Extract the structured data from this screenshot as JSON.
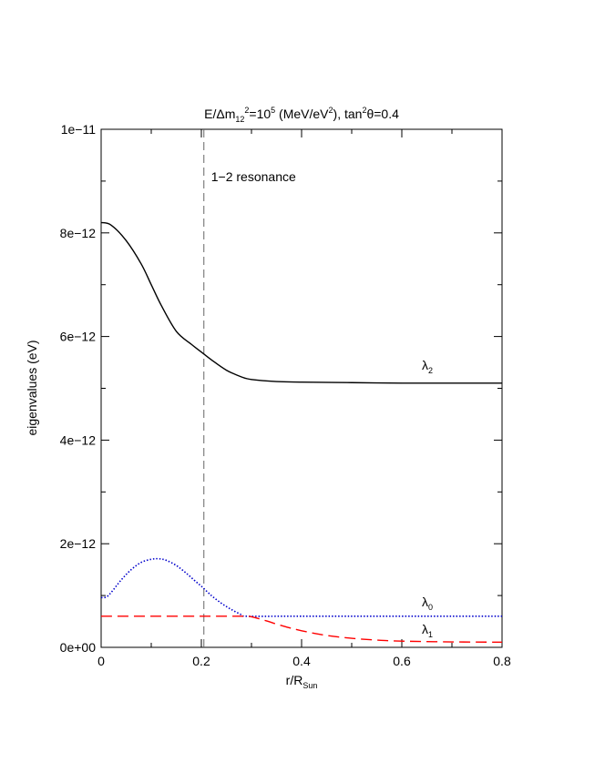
{
  "chart_data": {
    "type": "line",
    "title_parts": {
      "a": "E/Δm",
      "sub": "12",
      "sup1": "2",
      "b": "=10",
      "sup2": "5",
      "c": " (MeV/eV",
      "sup3": "2",
      "d": "), tan",
      "sup4": "2",
      "e": "θ=0.4"
    },
    "xlabel_parts": {
      "main": "r/R",
      "sub": "Sun"
    },
    "ylabel": "eigenvalues (eV)",
    "xlim": [
      0,
      0.8
    ],
    "ylim": [
      0,
      1e-11
    ],
    "x_ticks": [
      0,
      0.2,
      0.4,
      0.6,
      0.8
    ],
    "x_tick_labels": [
      "0",
      "0.2",
      "0.4",
      "0.6",
      "0.8"
    ],
    "y_ticks": [
      0,
      2e-12,
      4e-12,
      6e-12,
      8e-12,
      1e-11
    ],
    "y_tick_labels": [
      "0e+00",
      "2e−12",
      "4e−12",
      "6e−12",
      "8e−12",
      "1e−11"
    ],
    "grid": false,
    "series": [
      {
        "name": "λ2",
        "label": {
          "main": "λ",
          "sub": "2"
        },
        "color": "#000000",
        "style": "solid",
        "x": [
          0,
          0.02,
          0.05,
          0.08,
          0.1,
          0.12,
          0.15,
          0.18,
          0.2,
          0.22,
          0.25,
          0.28,
          0.3,
          0.35,
          0.4,
          0.5,
          0.6,
          0.7,
          0.8
        ],
        "y": [
          8.2e-12,
          8.15e-12,
          7.85e-12,
          7.4e-12,
          7e-12,
          6.6e-12,
          6.1e-12,
          5.85e-12,
          5.7e-12,
          5.55e-12,
          5.35e-12,
          5.22e-12,
          5.17e-12,
          5.13e-12,
          5.12e-12,
          5.11e-12,
          5.1e-12,
          5.1e-12,
          5.1e-12
        ]
      },
      {
        "name": "λ0",
        "label": {
          "main": "λ",
          "sub": "0"
        },
        "color": "#0000cc",
        "style": "dotted",
        "x": [
          0,
          0.01,
          0.02,
          0.04,
          0.06,
          0.08,
          0.1,
          0.115,
          0.13,
          0.15,
          0.17,
          0.19,
          0.2,
          0.22,
          0.24,
          0.26,
          0.28,
          0.29,
          0.35,
          0.4,
          0.5,
          0.6,
          0.7,
          0.8
        ],
        "y": [
          9.6e-13,
          9.7e-13,
          1.06e-12,
          1.3e-12,
          1.5e-12,
          1.64e-12,
          1.7e-12,
          1.71e-12,
          1.68e-12,
          1.58e-12,
          1.43e-12,
          1.26e-12,
          1.18e-12,
          1e-12,
          8.5e-13,
          7.3e-13,
          6.3e-13,
          6e-13,
          6e-13,
          6e-13,
          6e-13,
          6e-13,
          6e-13,
          6e-13
        ]
      },
      {
        "name": "λ1",
        "label": {
          "main": "λ",
          "sub": "1"
        },
        "color": "#ff0000",
        "style": "dashed",
        "x": [
          0,
          0.1,
          0.2,
          0.28,
          0.3,
          0.33,
          0.36,
          0.4,
          0.45,
          0.5,
          0.55,
          0.6,
          0.7,
          0.8
        ],
        "y": [
          6e-13,
          6e-13,
          6e-13,
          6e-13,
          5.9e-13,
          5.1e-13,
          4.2e-13,
          3.2e-13,
          2.3e-13,
          1.75e-13,
          1.4e-13,
          1.2e-13,
          1.05e-13,
          1e-13
        ]
      }
    ],
    "annotations": [
      {
        "text": "1−2 resonance",
        "type": "vline",
        "x": 0.205,
        "color": "#666666",
        "style": "dashed"
      }
    ]
  }
}
